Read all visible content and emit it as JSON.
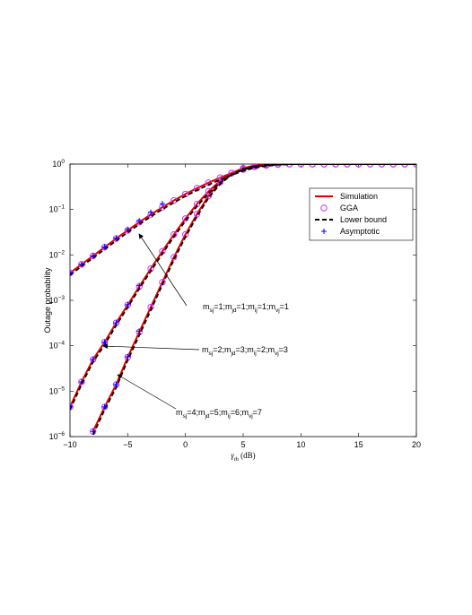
{
  "chart_data": {
    "type": "line",
    "xlabel": [
      "γ",
      "th",
      " (dB)"
    ],
    "ylabel": "Outage probability",
    "log_y": true,
    "legend_position": "upper right",
    "x": [
      -10,
      -9,
      -8,
      -7,
      -6,
      -5,
      -4,
      -3,
      -2,
      -1,
      0,
      1,
      2,
      3,
      4,
      5,
      6,
      7,
      8,
      9,
      10,
      11,
      12,
      13,
      14,
      15,
      16,
      17,
      18,
      19,
      20
    ],
    "xlim": [
      -10,
      20
    ],
    "xticks": [
      {
        "value": -10,
        "label": "−10"
      },
      {
        "value": -5,
        "label": "−5"
      },
      0,
      5,
      10,
      15,
      20
    ],
    "ylim": [
      1e-06,
      1
    ],
    "yticks": [
      {
        "value": 1e-06,
        "label": "10",
        "exponent": "−6"
      },
      {
        "value": 1e-05,
        "label": "10",
        "exponent": "−5"
      },
      {
        "value": 0.0001,
        "label": "10",
        "exponent": "−4"
      },
      {
        "value": 0.001,
        "label": "10",
        "exponent": "−3"
      },
      {
        "value": 0.01,
        "label": "10",
        "exponent": "−2"
      },
      {
        "value": 0.1,
        "label": "10",
        "exponent": "−1"
      },
      {
        "value": 1,
        "label": "10",
        "exponent": "0"
      }
    ],
    "series": [
      {
        "name": "Simulation",
        "color": "#e00000",
        "style": "line",
        "values": [
          [
            0.004,
            0.0062,
            0.0095,
            0.0148,
            0.0229,
            0.0347,
            0.0525,
            0.0776,
            0.112,
            0.158,
            0.219,
            0.295,
            0.389,
            0.501,
            0.631,
            0.759,
            0.871,
            0.933,
            0.977,
            1,
            1,
            1,
            1,
            1,
            1,
            1,
            1,
            1,
            1,
            1,
            1
          ],
          [
            4.5e-06,
            1.6e-05,
            5e-05,
            0.00012,
            0.00032,
            0.00079,
            0.002,
            0.005,
            0.012,
            0.0282,
            0.0631,
            0.132,
            0.251,
            0.427,
            0.631,
            0.794,
            0.912,
            0.966,
            0.989,
            1,
            1,
            1,
            1,
            1,
            1,
            1,
            1,
            1,
            1,
            1,
            1
          ],
          [
            null,
            null,
            1.3e-06,
            4.5e-06,
            1.4e-05,
            5.6e-05,
            0.0002,
            0.00071,
            0.0025,
            0.0089,
            0.0282,
            0.0794,
            0.2,
            0.398,
            0.631,
            0.813,
            0.933,
            0.977,
            1,
            1,
            1,
            1,
            1,
            1,
            1,
            1,
            1,
            1,
            1,
            1,
            1
          ]
        ]
      },
      {
        "name": "GGA",
        "color": "#cc33ff",
        "style": "circle",
        "values": [
          [
            0.004,
            0.0062,
            0.0095,
            0.0148,
            0.0229,
            0.0347,
            0.0525,
            0.0776,
            0.112,
            0.158,
            0.219,
            0.295,
            0.389,
            0.501,
            0.631,
            0.759,
            0.871,
            0.933,
            0.977,
            1,
            1,
            1,
            1,
            1,
            1,
            1,
            1,
            1,
            1,
            1,
            1
          ],
          [
            4.5e-06,
            1.6e-05,
            5e-05,
            0.00012,
            0.00032,
            0.00079,
            0.002,
            0.005,
            0.012,
            0.0282,
            0.0631,
            0.132,
            0.251,
            0.427,
            0.631,
            0.794,
            0.912,
            0.966,
            0.989,
            1,
            1,
            1,
            1,
            1,
            1,
            1,
            1,
            1,
            1,
            1,
            1
          ],
          [
            null,
            null,
            1.3e-06,
            4.5e-06,
            1.4e-05,
            5.6e-05,
            0.0002,
            0.00071,
            0.0025,
            0.0089,
            0.0282,
            0.0794,
            0.2,
            0.398,
            0.631,
            0.813,
            0.933,
            0.977,
            1,
            1,
            1,
            1,
            1,
            1,
            1,
            1,
            1,
            1,
            1,
            1,
            1
          ]
        ]
      },
      {
        "name": "Lower bound",
        "color": "#000000",
        "style": "dashed",
        "values": [
          [
            0.0036,
            0.0056,
            0.0086,
            0.0133,
            0.0206,
            0.0312,
            0.0473,
            0.0698,
            0.101,
            0.142,
            0.197,
            0.266,
            0.35,
            0.451,
            0.574,
            0.706,
            0.828,
            0.905,
            0.962,
            0.99,
            1,
            1,
            1,
            1,
            1,
            1,
            1,
            1,
            1,
            1,
            1
          ],
          [
            3.9e-06,
            1.4e-05,
            4.4e-05,
            0.000105,
            0.00028,
            0.0007,
            0.0018,
            0.0044,
            0.0106,
            0.025,
            0.056,
            0.118,
            0.226,
            0.388,
            0.585,
            0.752,
            0.88,
            0.947,
            0.98,
            0.995,
            1,
            1,
            1,
            1,
            1,
            1,
            1,
            1,
            1,
            1,
            1
          ],
          [
            null,
            null,
            1.1e-06,
            3.9e-06,
            1.2e-05,
            4.8e-05,
            0.00017,
            0.00061,
            0.0022,
            0.0078,
            0.0248,
            0.0705,
            0.18,
            0.362,
            0.585,
            0.775,
            0.91,
            0.965,
            0.99,
            1,
            1,
            1,
            1,
            1,
            1,
            1,
            1,
            1,
            1,
            1,
            1
          ]
        ]
      },
      {
        "name": "Asymptotic",
        "color": "#0000ff",
        "style": "plus",
        "values": [
          [
            0.004,
            0.0062,
            0.0096,
            0.0151,
            0.0236,
            0.0365,
            0.0562,
            0.0871,
            0.135,
            null,
            null,
            null,
            null,
            null,
            null,
            null,
            null,
            null,
            null,
            null,
            null,
            null,
            null,
            null,
            null,
            null,
            null,
            null,
            null,
            null,
            null
          ],
          [
            4.5e-06,
            1.6e-05,
            5e-05,
            0.00012,
            0.00032,
            0.0008,
            0.0021,
            null,
            null,
            null,
            null,
            null,
            null,
            null,
            null,
            null,
            null,
            null,
            null,
            null,
            null,
            null,
            null,
            null,
            null,
            null,
            null,
            null,
            null,
            null,
            null
          ],
          [
            null,
            null,
            1.3e-06,
            4.5e-06,
            1.4e-05,
            5.7e-05,
            0.00021,
            null,
            null,
            null,
            null,
            null,
            null,
            null,
            null,
            null,
            null,
            null,
            null,
            null,
            null,
            null,
            null,
            null,
            null,
            null,
            null,
            null,
            null,
            null,
            null
          ]
        ]
      }
    ],
    "annotations": [
      {
        "parts": [
          "m",
          "sj",
          "=1;m",
          "jd",
          "=1;m",
          "ij",
          "=1;m",
          "vj",
          "=1"
        ]
      },
      {
        "parts": [
          "m",
          "sj",
          "=2;m",
          "jd",
          "=3;m",
          "ij",
          "=2;m",
          "vj",
          "=3"
        ]
      },
      {
        "parts": [
          "m",
          "sj",
          "=4;m",
          "jd",
          "=5;m",
          "ij",
          "=6;m",
          "vj",
          "=7"
        ]
      }
    ]
  }
}
